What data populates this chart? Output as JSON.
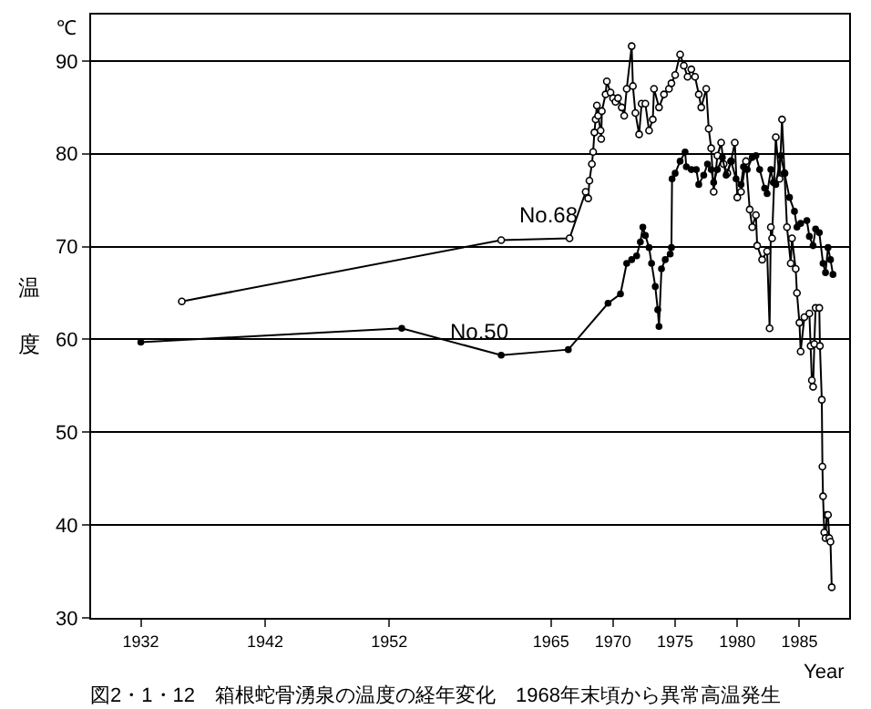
{
  "chart_data": {
    "type": "line",
    "title": "図2・1・12　箱根蛇骨湧泉の温度の経年変化　1968年末頃から異常高温発生",
    "xlabel": "Year",
    "ylabel": "温度",
    "annotations": [
      "℃"
    ],
    "xlim": [
      1928,
      1989
    ],
    "xticks": [
      1932,
      1942,
      1952,
      1965,
      1970,
      1975,
      1980,
      1985
    ],
    "ylim": [
      30,
      95
    ],
    "yticks": [
      30,
      40,
      50,
      60,
      70,
      80,
      90
    ],
    "grid": "y",
    "marker": "circle",
    "line_style": "solid",
    "series": [
      {
        "name": "No.68",
        "color": "#000000",
        "x": [
          1935.3,
          1961,
          1966.5,
          1967.8,
          1968.0,
          1968.1,
          1968.3,
          1968.4,
          1968.5,
          1968.6,
          1968.7,
          1968.8,
          1969.0,
          1969.05,
          1969.1,
          1969.4,
          1969.5,
          1969.8,
          1970.0,
          1970.2,
          1970.4,
          1970.7,
          1970.9,
          1971.1,
          1971.5,
          1971.6,
          1971.8,
          1972.1,
          1972.3,
          1972.6,
          1972.9,
          1973.2,
          1973.3,
          1973.7,
          1974.1,
          1974.5,
          1974.7,
          1975.0,
          1975.4,
          1975.7,
          1976.0,
          1976.3,
          1976.6,
          1976.9,
          1977.1,
          1977.5,
          1977.7,
          1977.9,
          1978.1,
          1978.4,
          1978.7,
          1978.9,
          1979.2,
          1979.5,
          1979.8,
          1980.0,
          1980.3,
          1980.7,
          1981.0,
          1981.2,
          1981.5,
          1981.6,
          1982.0,
          1982.4,
          1982.6,
          1982.7,
          1982.8,
          1983.1,
          1983.4,
          1983.6,
          1983.8,
          1984.0,
          1984.3,
          1984.4,
          1984.7,
          1984.8,
          1985.0,
          1985.1,
          1985.4,
          1985.8,
          1985.9,
          1986.0,
          1986.1,
          1986.2,
          1986.3,
          1986.6,
          1986.65,
          1986.8,
          1986.85,
          1986.9,
          1987.0,
          1987.1,
          1987.2,
          1987.3,
          1987.4,
          1987.5,
          1987.6
        ],
        "values": [
          64.1,
          70.7,
          70.9,
          75.9,
          75.2,
          77.1,
          78.9,
          80.2,
          82.3,
          83.7,
          85.2,
          84.1,
          82.5,
          81.6,
          84.6,
          86.4,
          87.8,
          86.6,
          86.0,
          85.6,
          86.0,
          85.0,
          84.1,
          87.0,
          91.6,
          87.3,
          84.4,
          82.1,
          85.4,
          85.4,
          82.5,
          83.7,
          87.0,
          85.0,
          86.4,
          87.0,
          87.6,
          88.5,
          90.7,
          89.5,
          88.3,
          89.1,
          88.3,
          86.4,
          85.0,
          87.0,
          82.7,
          80.6,
          75.9,
          79.8,
          81.2,
          78.9,
          77.9,
          79.2,
          81.2,
          75.3,
          75.9,
          79.2,
          74.0,
          72.1,
          73.4,
          70.1,
          68.6,
          69.5,
          61.2,
          72.1,
          70.9,
          81.8,
          77.3,
          83.7,
          77.9,
          72.1,
          68.2,
          70.9,
          67.6,
          65.0,
          61.8,
          58.7,
          62.4,
          62.8,
          59.3,
          55.6,
          54.9,
          59.5,
          63.4,
          63.4,
          59.3,
          53.5,
          46.3,
          43.1,
          39.2,
          38.6,
          41.1,
          41.1,
          38.6,
          38.2,
          33.3
        ]
      },
      {
        "name": "No.50",
        "color": "#000000",
        "x": [
          1932.0,
          1953.0,
          1961,
          1966.4,
          1969.6,
          1970.6,
          1971.1,
          1971.5,
          1971.9,
          1972.2,
          1972.4,
          1972.6,
          1972.9,
          1973.1,
          1973.4,
          1973.6,
          1973.7,
          1973.9,
          1974.2,
          1974.6,
          1974.7,
          1974.75,
          1975.0,
          1975.4,
          1975.8,
          1975.9,
          1976.3,
          1976.7,
          1976.9,
          1977.3,
          1977.6,
          1977.9,
          1978.1,
          1978.4,
          1978.8,
          1979.1,
          1979.5,
          1979.9,
          1980.3,
          1980.5,
          1980.8,
          1981.2,
          1981.5,
          1981.8,
          1982.2,
          1982.4,
          1982.7,
          1982.9,
          1983.1,
          1983.5,
          1983.8,
          1984.2,
          1984.6,
          1984.8,
          1985.1,
          1985.6,
          1985.8,
          1986.1,
          1986.3,
          1986.6,
          1986.9,
          1987.1,
          1987.3,
          1987.5,
          1987.7
        ],
        "values": [
          59.7,
          61.2,
          58.3,
          58.9,
          63.9,
          64.9,
          68.2,
          68.6,
          69.0,
          70.5,
          72.1,
          71.2,
          69.9,
          68.2,
          65.7,
          63.2,
          61.4,
          67.6,
          68.6,
          69.2,
          69.9,
          77.3,
          77.9,
          79.2,
          80.2,
          78.6,
          78.3,
          78.3,
          76.7,
          77.7,
          78.9,
          78.3,
          76.9,
          78.3,
          79.6,
          77.7,
          79.2,
          77.3,
          76.7,
          78.6,
          78.3,
          79.6,
          79.8,
          78.3,
          76.3,
          75.7,
          78.3,
          76.9,
          76.7,
          79.8,
          77.9,
          75.3,
          73.8,
          72.1,
          72.5,
          72.8,
          71.1,
          70.1,
          71.9,
          71.5,
          68.2,
          67.2,
          69.9,
          68.6,
          67.0
        ]
      }
    ]
  }
}
